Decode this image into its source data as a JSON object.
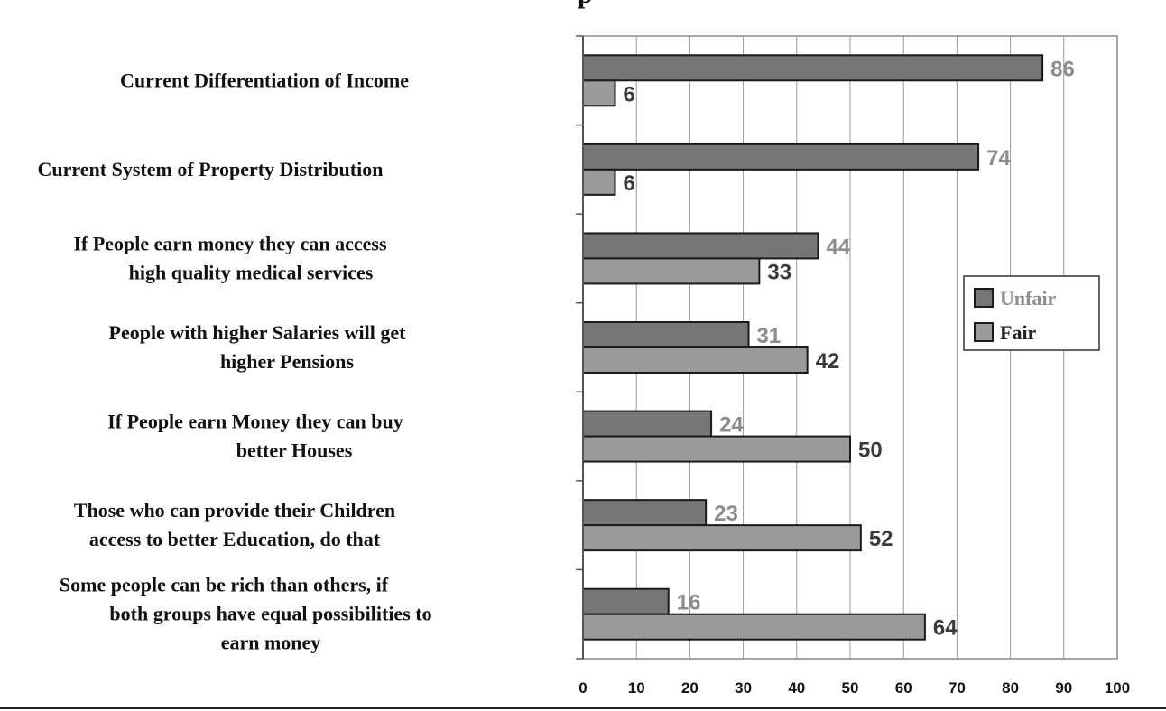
{
  "header_fragment": "p",
  "chart_data": {
    "type": "bar",
    "orientation": "horizontal",
    "categories": [
      [
        "Current Differentiation of Income"
      ],
      [
        "Current System of Property Distribution"
      ],
      [
        "If People earn money they can access",
        "high quality medical services"
      ],
      [
        "People with higher Salaries will get",
        "higher Pensions"
      ],
      [
        "If People earn Money they can buy",
        "better Houses"
      ],
      [
        "Those who can provide their Children",
        "access to better Education, do that"
      ],
      [
        "Some people can be rich than others, if",
        "both groups have equal possibilities to",
        "earn money"
      ]
    ],
    "series": [
      {
        "name": "Unfair",
        "values": [
          86,
          74,
          44,
          31,
          24,
          23,
          16
        ],
        "color": "#767676",
        "label_color": "#8c8c8c"
      },
      {
        "name": "Fair",
        "values": [
          6,
          6,
          33,
          42,
          50,
          52,
          64
        ],
        "color": "#9a9a9a",
        "label_color": "#3a3a3a"
      }
    ],
    "xlim": [
      0,
      100
    ],
    "xticks": [
      "0",
      "10",
      "20",
      "30",
      "40",
      "50",
      "60",
      "70",
      "80",
      "90",
      "100"
    ],
    "grid": true,
    "legend_position": "right"
  }
}
